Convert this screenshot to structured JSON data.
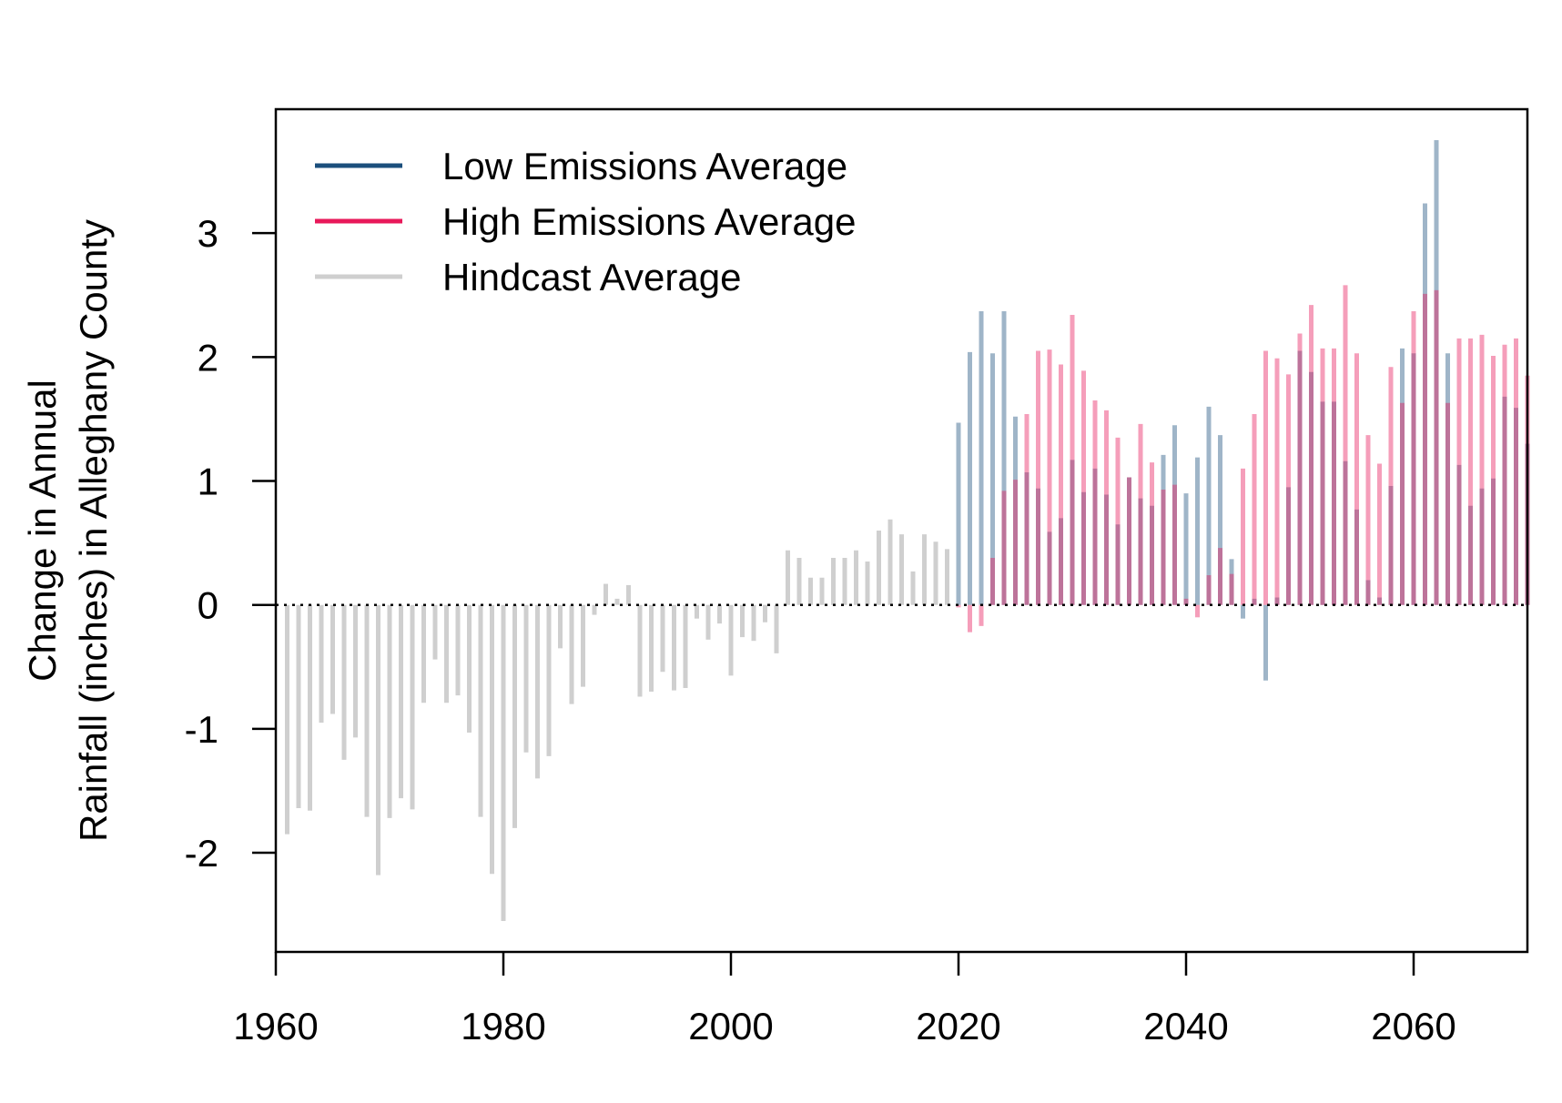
{
  "chart_data": {
    "type": "bar",
    "title": "",
    "xlabel": "",
    "ylabel_lines": [
      "Change in Annual",
      "Rainfall (inches) in Alleghany County"
    ],
    "xlim": [
      1960,
      2070
    ],
    "ylim": [
      -2.8,
      4.0
    ],
    "xticks": [
      1960,
      1980,
      2000,
      2020,
      2040,
      2060
    ],
    "yticks": [
      -2,
      -1,
      0,
      1,
      2,
      3
    ],
    "zero_line": "dotted",
    "legend_position": "top-left",
    "legend": [
      {
        "label": "Low Emissions Average",
        "color": "#1b4f7c"
      },
      {
        "label": "High Emissions Average",
        "color": "#e8195a"
      },
      {
        "label": "Hindcast Average",
        "color": "#cfcfcf"
      }
    ],
    "series": [
      {
        "name": "Hindcast Average",
        "color": "#cfcfcf",
        "x": [
          1961,
          1962,
          1963,
          1964,
          1965,
          1966,
          1967,
          1968,
          1969,
          1970,
          1971,
          1972,
          1973,
          1974,
          1975,
          1976,
          1977,
          1978,
          1979,
          1980,
          1981,
          1982,
          1983,
          1984,
          1985,
          1986,
          1987,
          1988,
          1989,
          1990,
          1991,
          1992,
          1993,
          1994,
          1995,
          1996,
          1997,
          1998,
          1999,
          2000,
          2001,
          2002,
          2003,
          2004,
          2005,
          2006,
          2007,
          2008,
          2009,
          2010,
          2011,
          2012,
          2013,
          2014,
          2015,
          2016,
          2017,
          2018,
          2019
        ],
        "values": [
          -1.85,
          -1.64,
          -1.66,
          -0.95,
          -0.88,
          -1.25,
          -1.07,
          -1.71,
          -2.18,
          -1.72,
          -1.56,
          -1.65,
          -0.79,
          -0.44,
          -0.79,
          -0.73,
          -1.03,
          -1.71,
          -2.17,
          -2.55,
          -1.8,
          -1.19,
          -1.4,
          -1.22,
          -0.35,
          -0.8,
          -0.66,
          -0.08,
          0.17,
          0.05,
          0.16,
          -0.74,
          -0.7,
          -0.54,
          -0.69,
          -0.67,
          -0.11,
          -0.28,
          -0.15,
          -0.57,
          -0.26,
          -0.29,
          -0.14,
          -0.39,
          0.44,
          0.38,
          0.22,
          0.22,
          0.38,
          0.38,
          0.44,
          0.35,
          0.6,
          0.69,
          0.57,
          0.27,
          0.57,
          0.51,
          0.45
        ]
      },
      {
        "name": "Low Emissions Average",
        "color": "#1b4f7c",
        "x": [
          2020,
          2021,
          2022,
          2023,
          2024,
          2025,
          2026,
          2027,
          2028,
          2029,
          2030,
          2031,
          2032,
          2033,
          2034,
          2035,
          2036,
          2037,
          2038,
          2039,
          2040,
          2041,
          2042,
          2043,
          2044,
          2045,
          2046,
          2047,
          2048,
          2049,
          2050,
          2051,
          2052,
          2053,
          2054,
          2055,
          2056,
          2057,
          2058,
          2059,
          2060,
          2061,
          2062,
          2063,
          2064,
          2065,
          2066,
          2067,
          2068,
          2069,
          2070
        ],
        "values": [
          1.47,
          2.04,
          2.37,
          2.03,
          2.37,
          1.52,
          1.07,
          0.94,
          0.59,
          0.7,
          1.17,
          0.91,
          1.1,
          0.89,
          0.65,
          1.03,
          0.86,
          0.8,
          1.21,
          1.45,
          0.9,
          1.19,
          1.6,
          1.37,
          0.37,
          -0.11,
          0.05,
          -0.61,
          0.06,
          0.95,
          2.05,
          1.88,
          1.64,
          1.64,
          1.16,
          0.77,
          0.2,
          0.06,
          0.96,
          2.07,
          2.03,
          3.24,
          3.75,
          2.03,
          1.13,
          0.8,
          0.94,
          1.02,
          1.68,
          1.59,
          1.3
        ]
      },
      {
        "name": "High Emissions Average",
        "color": "#e8195a",
        "x": [
          2020,
          2021,
          2022,
          2023,
          2024,
          2025,
          2026,
          2027,
          2028,
          2029,
          2030,
          2031,
          2032,
          2033,
          2034,
          2035,
          2036,
          2037,
          2038,
          2039,
          2040,
          2041,
          2042,
          2043,
          2044,
          2045,
          2046,
          2047,
          2048,
          2049,
          2050,
          2051,
          2052,
          2053,
          2054,
          2055,
          2056,
          2057,
          2058,
          2059,
          2060,
          2061,
          2062,
          2063,
          2064,
          2065,
          2066,
          2067,
          2068,
          2069,
          2070
        ],
        "values": [
          -0.02,
          -0.22,
          -0.17,
          0.38,
          0.92,
          1.01,
          1.54,
          2.05,
          2.06,
          1.94,
          2.34,
          1.89,
          1.65,
          1.57,
          1.35,
          1.03,
          1.46,
          1.15,
          0.93,
          0.97,
          0.05,
          -0.1,
          0.24,
          0.46,
          0.25,
          1.1,
          1.54,
          2.05,
          1.99,
          1.86,
          2.19,
          2.42,
          2.07,
          2.07,
          2.58,
          2.03,
          1.37,
          1.14,
          1.92,
          1.63,
          2.37,
          2.51,
          2.54,
          1.63,
          2.15,
          2.15,
          2.18,
          2.01,
          2.1,
          2.15,
          1.85
        ]
      }
    ]
  }
}
